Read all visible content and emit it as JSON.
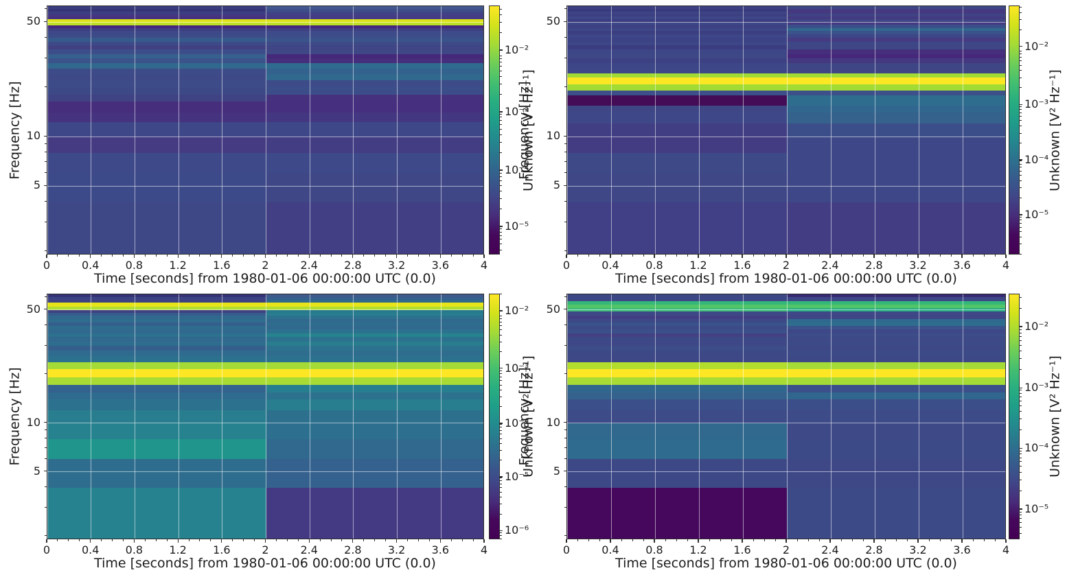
{
  "figure": {
    "kind": "spectrogram-grid",
    "rows": 2,
    "cols": 2,
    "background": "#ffffff",
    "text_color": "#1c1c1c",
    "grid_color": "rgba(255,255,255,0.55)"
  },
  "chart_data": {
    "type": "heatmap",
    "title": "",
    "xlabel": "Time [seconds] from 1980-01-06 00:00:00 UTC (0.0)",
    "ylabel": "Frequency [Hz]",
    "colorbar_label": "Unknown [V² Hz⁻¹]",
    "units": "V² Hz⁻¹",
    "value_scale": "log",
    "x_range": [
      0,
      4
    ],
    "x_major_ticks": [
      0,
      0.4,
      0.8,
      1.2,
      1.6,
      2,
      2.4,
      2.8,
      3.2,
      3.6,
      4
    ],
    "x_tick_labels": [
      "0",
      "0.4",
      "0.8",
      "1.2",
      "1.6",
      "2",
      "2.4",
      "2.8",
      "3.2",
      "3.6",
      "4"
    ],
    "x_minor_step": 0.1,
    "y_scale": "log",
    "y_range": [
      1.9,
      62.5
    ],
    "y_major_ticks": [
      5,
      10,
      50
    ],
    "y_tick_labels": [
      "5",
      "10",
      "50"
    ],
    "y_minor_ticks": [
      2,
      3,
      4,
      6,
      7,
      8,
      9,
      20,
      30,
      40,
      60
    ],
    "time_segments": [
      [
        0,
        2
      ],
      [
        2,
        4
      ]
    ],
    "colormap": "viridis",
    "colormap_gradient": [
      "#fde725",
      "#d2e21b",
      "#a5db36",
      "#6ece58",
      "#44bf70",
      "#28ae80",
      "#1f9e89",
      "#23898e",
      "#2c728e",
      "#365c8d",
      "#404688",
      "#472d7b",
      "#46085c",
      "#440154"
    ],
    "band_format": "[freq_lo_hz, freq_hi_hz, color_0_to_2s, color_2_to_4s]",
    "panels": [
      {
        "name": "top-left",
        "colorbar_ticks": [
          [
            "10⁻²",
            0.179
          ],
          [
            "10⁻³",
            0.427
          ],
          [
            "10⁻⁴",
            0.661
          ],
          [
            "10⁻⁵",
            0.887
          ]
        ],
        "bands": [
          [
            60,
            62.5,
            "#3b3d7f",
            "#41598e"
          ],
          [
            58,
            60,
            "#363578",
            "#3f4e8a"
          ],
          [
            56,
            58,
            "#3c3f81",
            "#3d4585"
          ],
          [
            54,
            56,
            "#443781",
            "#433e85"
          ],
          [
            52.1,
            54,
            "#45317d",
            "#443c83"
          ],
          [
            49.6,
            52.1,
            "#dde318",
            "#dde318"
          ],
          [
            47.7,
            49.6,
            "#bfdf25",
            "#bfdf25"
          ],
          [
            46,
            47.7,
            "#46257e",
            "#46257e"
          ],
          [
            44,
            46,
            "#3f3e83",
            "#403f84"
          ],
          [
            42,
            44,
            "#3d4888",
            "#3e4a89"
          ],
          [
            40,
            42,
            "#3d4b88",
            "#3c4d89"
          ],
          [
            38,
            40,
            "#375a8c",
            "#3a548b"
          ],
          [
            36,
            38,
            "#3d4a88",
            "#3e4a88"
          ],
          [
            34,
            36,
            "#414082",
            "#3f4585"
          ],
          [
            32,
            34,
            "#3d4d89",
            "#3f4787"
          ],
          [
            30,
            32,
            "#36608d",
            "#46287a"
          ],
          [
            28,
            30,
            "#3a538b",
            "#452e7c"
          ],
          [
            26,
            28,
            "#31688e",
            "#2f6b8e"
          ],
          [
            24,
            26,
            "#3d4b88",
            "#33628e"
          ],
          [
            22,
            24,
            "#3e4a88",
            "#31688e"
          ],
          [
            20,
            22,
            "#3d4c89",
            "#3d4c89"
          ],
          [
            18,
            20,
            "#3d4987",
            "#3c4e89"
          ],
          [
            16.4,
            18,
            "#3f4384",
            "#45317d"
          ],
          [
            14,
            16.4,
            "#462e7c",
            "#452f7e"
          ],
          [
            12.3,
            14,
            "#453380",
            "#443781"
          ],
          [
            10,
            12.3,
            "#3e4787",
            "#3e4888"
          ],
          [
            8,
            10,
            "#443b83",
            "#433d84"
          ],
          [
            6,
            8,
            "#3e4989",
            "#3e4989"
          ],
          [
            4,
            6,
            "#3d4a89",
            "#3f4787"
          ],
          [
            1.9,
            4,
            "#3e4887",
            "#423f85"
          ]
        ]
      },
      {
        "name": "top-right",
        "colorbar_ticks": [
          [
            "10⁻²",
            0.165
          ],
          [
            "10⁻³",
            0.397
          ],
          [
            "10⁻⁴",
            0.62
          ],
          [
            "10⁻⁵",
            0.84
          ]
        ],
        "bands": [
          [
            60,
            62.5,
            "#3c4083",
            "#3e4786"
          ],
          [
            58,
            60,
            "#393a7d",
            "#443981"
          ],
          [
            56,
            58,
            "#3d4585",
            "#453980"
          ],
          [
            54,
            56,
            "#3c3f82",
            "#3f4284"
          ],
          [
            52,
            54,
            "#3d4686",
            "#443a81"
          ],
          [
            50,
            52,
            "#3b3d80",
            "#3e4585"
          ],
          [
            48,
            50,
            "#3d4787",
            "#443982"
          ],
          [
            46,
            48,
            "#3c4184",
            "#3a4f8a"
          ],
          [
            44,
            46,
            "#3d4686",
            "#30698e"
          ],
          [
            42,
            44,
            "#3b3e81",
            "#3a548b"
          ],
          [
            40,
            42,
            "#3d4787",
            "#3d4787"
          ],
          [
            38,
            40,
            "#3c4285",
            "#443b82"
          ],
          [
            36,
            38,
            "#3d4686",
            "#3d4686"
          ],
          [
            34,
            36,
            "#3a3c7f",
            "#3e4686"
          ],
          [
            32,
            34,
            "#3d4787",
            "#452e7b"
          ],
          [
            30,
            32,
            "#3e4887",
            "#46287a"
          ],
          [
            28,
            30,
            "#3c4184",
            "#443981"
          ],
          [
            26,
            28,
            "#3d4686",
            "#3e4686"
          ],
          [
            24.3,
            26,
            "#3e4787",
            "#3f4585"
          ],
          [
            23.0,
            24.3,
            "#a3db35",
            "#a3db35"
          ],
          [
            20.9,
            23.0,
            "#fce724",
            "#fce724"
          ],
          [
            19.1,
            20.9,
            "#a3db35",
            "#a3db35"
          ],
          [
            17.9,
            19.1,
            "#3c4f8a",
            "#3c508a"
          ],
          [
            15.5,
            17.9,
            "#440c56",
            "#2e6d8e"
          ],
          [
            14,
            15.5,
            "#3e4686",
            "#31668e"
          ],
          [
            12,
            14,
            "#3e4888",
            "#35618d"
          ],
          [
            10,
            12,
            "#423e84",
            "#3c4e8a"
          ],
          [
            8,
            10,
            "#433c83",
            "#3e4787"
          ],
          [
            6,
            8,
            "#3e4988",
            "#3e4787"
          ],
          [
            4,
            6,
            "#3f4787",
            "#3e4787"
          ],
          [
            1.9,
            4,
            "#413f85",
            "#433e84"
          ]
        ]
      },
      {
        "name": "bottom-left",
        "colorbar_ticks": [
          [
            "10⁻²",
            0.07
          ],
          [
            "10⁻³",
            0.304
          ],
          [
            "10⁻⁴",
            0.528
          ],
          [
            "10⁻⁵",
            0.746
          ],
          [
            "10⁻⁶",
            0.964
          ]
        ],
        "bands": [
          [
            60,
            62.5,
            "#353377",
            "#3f5a8c"
          ],
          [
            58,
            60,
            "#3c4383",
            "#34608d"
          ],
          [
            55.6,
            58,
            "#3d4182",
            "#31688e"
          ],
          [
            52.4,
            55.6,
            "#e7e419",
            "#e7e419"
          ],
          [
            50.1,
            52.4,
            "#b0dd2f",
            "#b0dd2f"
          ],
          [
            48,
            50.1,
            "#3f4181",
            "#28798e"
          ],
          [
            46,
            48,
            "#365c8d",
            "#287d8e"
          ],
          [
            44,
            46,
            "#31688e",
            "#2c728e"
          ],
          [
            42,
            44,
            "#2f6c8e",
            "#31688e"
          ],
          [
            40,
            42,
            "#345f8d",
            "#2e6d8e"
          ],
          [
            38,
            40,
            "#2e6d8e",
            "#31688e"
          ],
          [
            36,
            38,
            "#31688e",
            "#2c718e"
          ],
          [
            34,
            36,
            "#2c718e",
            "#25848e"
          ],
          [
            32,
            34,
            "#31688e",
            "#2c718e"
          ],
          [
            30,
            32,
            "#2e6d8e",
            "#287d8e"
          ],
          [
            28,
            30,
            "#345f8d",
            "#2c728e"
          ],
          [
            26,
            28,
            "#2f6b8e",
            "#2e6d8e"
          ],
          [
            23.8,
            26,
            "#2c718e",
            "#2c718e"
          ],
          [
            21.6,
            23.8,
            "#a5db36",
            "#a5db36"
          ],
          [
            19.2,
            21.6,
            "#fde725",
            "#fde725"
          ],
          [
            17.2,
            19.2,
            "#a8db34",
            "#a8db34"
          ],
          [
            15.5,
            17.2,
            "#33628e",
            "#277e8e"
          ],
          [
            14,
            15.5,
            "#2f6b8e",
            "#2c718e"
          ],
          [
            12,
            14,
            "#2c728e",
            "#287d8e"
          ],
          [
            10,
            12,
            "#287d8e",
            "#2d708e"
          ],
          [
            8,
            10,
            "#26828e",
            "#2d6f8e"
          ],
          [
            6,
            8,
            "#1f958b",
            "#31688e"
          ],
          [
            4,
            6,
            "#2e6d8e",
            "#34618d"
          ],
          [
            1.9,
            4,
            "#26828e",
            "#443983"
          ]
        ]
      },
      {
        "name": "bottom-right",
        "colorbar_ticks": [
          [
            "10⁻²",
            0.134
          ],
          [
            "10⁻³",
            0.383
          ],
          [
            "10⁻⁴",
            0.629
          ],
          [
            "10⁻⁵",
            0.877
          ]
        ],
        "bands": [
          [
            60,
            62.5,
            "#3c4886",
            "#372a74"
          ],
          [
            58,
            60,
            "#3d4786",
            "#3e4786"
          ],
          [
            56.7,
            58,
            "#3c4986",
            "#3d4886"
          ],
          [
            54.0,
            56.7,
            "#35b779",
            "#35b779"
          ],
          [
            51.4,
            54.0,
            "#52c569",
            "#52c569"
          ],
          [
            49.0,
            51.4,
            "#3bbb75",
            "#27ad81"
          ],
          [
            46,
            49.0,
            "#3d4986",
            "#3e4887"
          ],
          [
            44,
            46,
            "#433d84",
            "#3f4585"
          ],
          [
            42,
            44,
            "#3d4887",
            "#30698e"
          ],
          [
            40,
            42,
            "#3a528b",
            "#2e6d8e"
          ],
          [
            38,
            40,
            "#3d4a88",
            "#3a538b"
          ],
          [
            36,
            38,
            "#3b4f8a",
            "#3e4787"
          ],
          [
            34,
            36,
            "#434083",
            "#3c4d89"
          ],
          [
            32,
            34,
            "#3d4886",
            "#3e4988"
          ],
          [
            30,
            32,
            "#3e4787",
            "#3d4a88"
          ],
          [
            28,
            30,
            "#3c4d89",
            "#3e4887"
          ],
          [
            26,
            28,
            "#3d4986",
            "#3c4b88"
          ],
          [
            23.8,
            26,
            "#3e4887",
            "#3d4986"
          ],
          [
            21.6,
            23.8,
            "#b2dd2d",
            "#a5db36"
          ],
          [
            19.2,
            21.6,
            "#fde725",
            "#fde725"
          ],
          [
            17.2,
            19.2,
            "#a8db34",
            "#a5db36"
          ],
          [
            15.5,
            17.2,
            "#31678e",
            "#3b508a"
          ],
          [
            14,
            15.5,
            "#34628d",
            "#31678e"
          ],
          [
            12,
            14,
            "#3b508a",
            "#3c4e89"
          ],
          [
            10,
            12,
            "#3d4b88",
            "#3d4b88"
          ],
          [
            8,
            10,
            "#31688e",
            "#3e4988"
          ],
          [
            6,
            8,
            "#2f6b8e",
            "#3d4a88"
          ],
          [
            4,
            6,
            "#3d4987",
            "#3e4887"
          ],
          [
            1.9,
            4,
            "#46085c",
            "#3c4a87"
          ]
        ]
      }
    ]
  }
}
